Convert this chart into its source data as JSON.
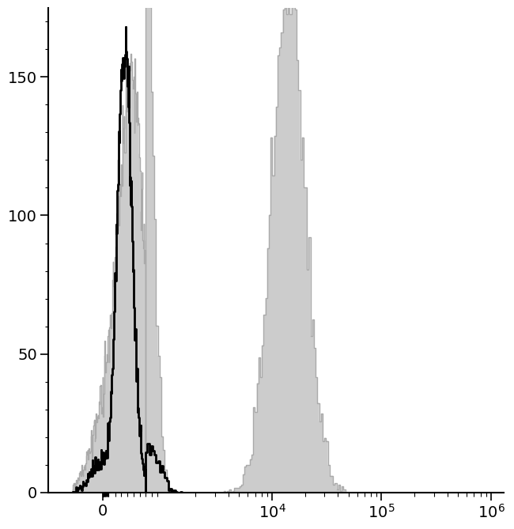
{
  "ylim": [
    0,
    175
  ],
  "yticks": [
    0,
    50,
    100,
    150
  ],
  "background_color": "#ffffff",
  "black_line_color": "#000000",
  "gray_fill_color": "#cccccc",
  "gray_edge_color": "#aaaaaa",
  "linewidth_black": 2.0,
  "linewidth_gray": 1.0,
  "linthresh": 700,
  "linscale": 0.35
}
